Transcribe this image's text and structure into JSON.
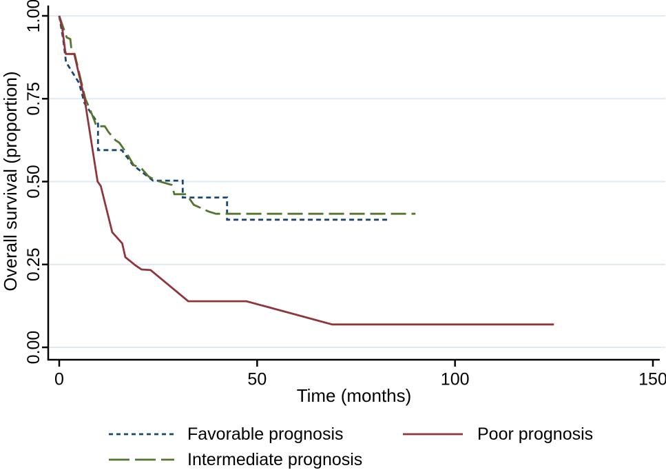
{
  "chart_data": {
    "type": "line",
    "subtype": "kaplan-meier-survival",
    "title": "",
    "xlabel": "Time (months)",
    "ylabel": "Overall survival (proportion)",
    "xlim": [
      0,
      150
    ],
    "ylim": [
      0,
      1
    ],
    "xticks": {
      "values": [
        0,
        50,
        100,
        150
      ],
      "labels": [
        "0",
        "50",
        "100",
        "150"
      ]
    },
    "yticks": {
      "values": [
        1.0,
        0.75,
        0.5,
        0.25,
        0.0
      ],
      "labels": [
        "1.00",
        "0.75",
        "0.50",
        "0.25",
        "0.00"
      ]
    },
    "grid": "horizontal-only",
    "legend_position": "bottom",
    "series": [
      {
        "name": "Favorable prognosis",
        "color": "#1a476f",
        "line_style": "short-dash",
        "points": [
          [
            0,
            1.0
          ],
          [
            1.0,
            0.93
          ],
          [
            1.7,
            0.861
          ],
          [
            3.3,
            0.83
          ],
          [
            5.0,
            0.798
          ],
          [
            6.4,
            0.736
          ],
          [
            9.8,
            0.675
          ],
          [
            9.8,
            0.595
          ],
          [
            15.8,
            0.595
          ],
          [
            18.6,
            0.55
          ],
          [
            23.7,
            0.503
          ],
          [
            31.2,
            0.503
          ],
          [
            31.2,
            0.452
          ],
          [
            42.4,
            0.452
          ],
          [
            42.4,
            0.385
          ],
          [
            83,
            0.385
          ]
        ]
      },
      {
        "name": "Poor prognosis",
        "color": "#90353b",
        "line_style": "solid",
        "points": [
          [
            0,
            1.0
          ],
          [
            0.8,
            0.96
          ],
          [
            1.5,
            0.895
          ],
          [
            1.7,
            0.885
          ],
          [
            3.8,
            0.885
          ],
          [
            6.4,
            0.75
          ],
          [
            9.7,
            0.5
          ],
          [
            10.5,
            0.487
          ],
          [
            13.4,
            0.347
          ],
          [
            15.9,
            0.314
          ],
          [
            16.7,
            0.272
          ],
          [
            19.3,
            0.247
          ],
          [
            20.8,
            0.235
          ],
          [
            23.1,
            0.233
          ],
          [
            32.6,
            0.139
          ],
          [
            47.3,
            0.139
          ],
          [
            69,
            0.069
          ],
          [
            125,
            0.069
          ]
        ]
      },
      {
        "name": "Intermediate prognosis",
        "color": "#55752f",
        "line_style": "long-dash",
        "points": [
          [
            0,
            1.0
          ],
          [
            1.9,
            0.935
          ],
          [
            2.8,
            0.93
          ],
          [
            3.2,
            0.885
          ],
          [
            3.9,
            0.885
          ],
          [
            6.6,
            0.75
          ],
          [
            7.7,
            0.72
          ],
          [
            8.9,
            0.684
          ],
          [
            9.4,
            0.667
          ],
          [
            11.5,
            0.667
          ],
          [
            12.4,
            0.65
          ],
          [
            14.2,
            0.625
          ],
          [
            15.2,
            0.617
          ],
          [
            16.2,
            0.6
          ],
          [
            17.5,
            0.576
          ],
          [
            18.8,
            0.55
          ],
          [
            20.9,
            0.538
          ],
          [
            22.6,
            0.515
          ],
          [
            24.6,
            0.503
          ],
          [
            26.3,
            0.497
          ],
          [
            28.4,
            0.49
          ],
          [
            29.1,
            0.462
          ],
          [
            32.1,
            0.462
          ],
          [
            34.0,
            0.43
          ],
          [
            37.7,
            0.41
          ],
          [
            39.6,
            0.403
          ],
          [
            90,
            0.403
          ]
        ]
      }
    ]
  },
  "colors": {
    "background": "#ffffff",
    "gridline": "#dfeaf2",
    "axis": "#000000",
    "text": "#000000"
  }
}
